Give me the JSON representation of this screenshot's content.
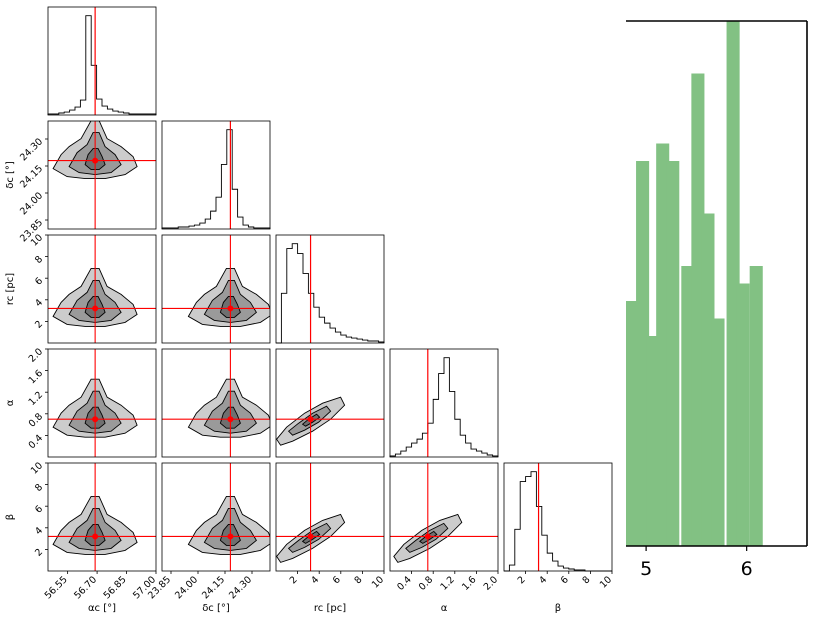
{
  "colors": {
    "truth_line": "#ff0000",
    "hist_line": "#000000",
    "contour_outer": "#cccccc",
    "contour_mid": "#9a9a9a",
    "contour_inner": "#6f6f6f",
    "bar_fill": "#82c183"
  },
  "chart_data": [
    {
      "type": "corner",
      "parameters": [
        "alpha_c",
        "delta_c",
        "r_c",
        "alpha",
        "beta"
      ],
      "axis_labels": {
        "alpha_c": "αc [°]",
        "delta_c": "δc [°]",
        "r_c": "rc [pc]",
        "alpha": "α",
        "beta": "β"
      },
      "ranges": {
        "alpha_c": [
          56.45,
          57.0
        ],
        "delta_c": [
          23.8,
          24.4
        ],
        "r_c": [
          0,
          10
        ],
        "alpha": [
          0,
          2.0
        ],
        "beta": [
          0,
          10
        ]
      },
      "ticks": {
        "alpha_c": [
          "56.55",
          "56.70",
          "56.85",
          "57.00"
        ],
        "delta_c": [
          "23.85",
          "24.00",
          "24.15",
          "24.30"
        ],
        "r_c": [
          "2",
          "4",
          "6",
          "8",
          "10"
        ],
        "alpha": [
          "0.4",
          "0.8",
          "1.2",
          "1.6",
          "2.0"
        ],
        "beta": [
          "2",
          "4",
          "6",
          "8",
          "10"
        ]
      },
      "truths": {
        "alpha_c": 56.69,
        "delta_c": 24.18,
        "r_c": 3.2,
        "alpha": 0.7,
        "beta": 3.2
      },
      "marginal_histograms": {
        "alpha_c": [
          1,
          1,
          2,
          3,
          5,
          8,
          15,
          100,
          50,
          16,
          9,
          6,
          4,
          3,
          2,
          1,
          1,
          1,
          1,
          1
        ],
        "delta_c": [
          1,
          1,
          1,
          2,
          2,
          3,
          4,
          6,
          10,
          18,
          32,
          65,
          100,
          40,
          12,
          4,
          2,
          1,
          1,
          1
        ],
        "r_c": [
          0,
          50,
          95,
          100,
          90,
          70,
          50,
          36,
          26,
          20,
          15,
          11,
          8,
          6,
          5,
          4,
          3,
          2,
          2,
          1
        ],
        "alpha": [
          1,
          3,
          6,
          10,
          14,
          18,
          24,
          34,
          58,
          84,
          100,
          66,
          38,
          22,
          14,
          8,
          6,
          4,
          2,
          1
        ],
        "beta": [
          0,
          6,
          42,
          90,
          95,
          100,
          65,
          36,
          18,
          10,
          5,
          3,
          2,
          1,
          1,
          0,
          0,
          0,
          0,
          0
        ]
      }
    },
    {
      "type": "bar",
      "x_ticks": [
        "5",
        "6"
      ],
      "xlim": [
        4.8,
        6.6
      ],
      "ylim": [
        0,
        30
      ],
      "bar_edges": [
        4.8,
        4.9,
        5.0,
        5.1,
        5.2,
        5.35,
        5.45,
        5.55,
        5.65,
        5.8,
        5.9,
        6.03,
        6.18
      ],
      "values": [
        14,
        22,
        12,
        23,
        22,
        16,
        27,
        19,
        13,
        30,
        15,
        16
      ],
      "bar_width": 0.13
    }
  ]
}
